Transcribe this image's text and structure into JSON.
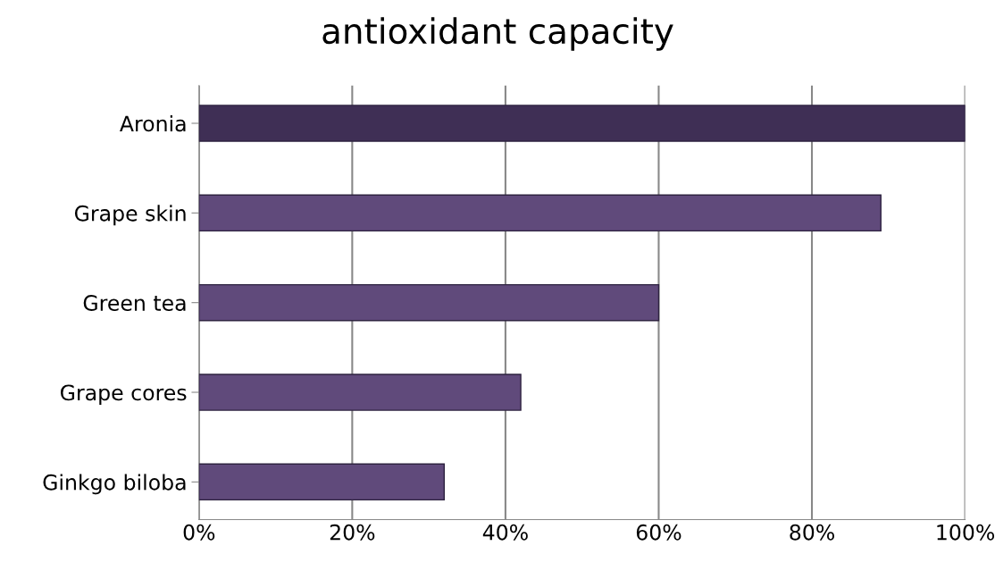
{
  "chart_data": {
    "type": "bar",
    "orientation": "horizontal",
    "title": "antioxidant capacity",
    "categories": [
      "Aronia",
      "Grape skin",
      "Green tea",
      "Grape cores",
      "Ginkgo biloba"
    ],
    "values": [
      100,
      89,
      60,
      42,
      32
    ],
    "colors": [
      "#3f2f55",
      "#604a7b",
      "#604a7b",
      "#604a7b",
      "#604a7b"
    ],
    "xlim": [
      0,
      100
    ],
    "xticks": [
      {
        "value": 0,
        "label": "0%"
      },
      {
        "value": 20,
        "label": "20%"
      },
      {
        "value": 40,
        "label": "40%"
      },
      {
        "value": 60,
        "label": "60%"
      },
      {
        "value": 80,
        "label": "80%"
      },
      {
        "value": 100,
        "label": "100%"
      }
    ],
    "grid": "x",
    "legend": false
  }
}
